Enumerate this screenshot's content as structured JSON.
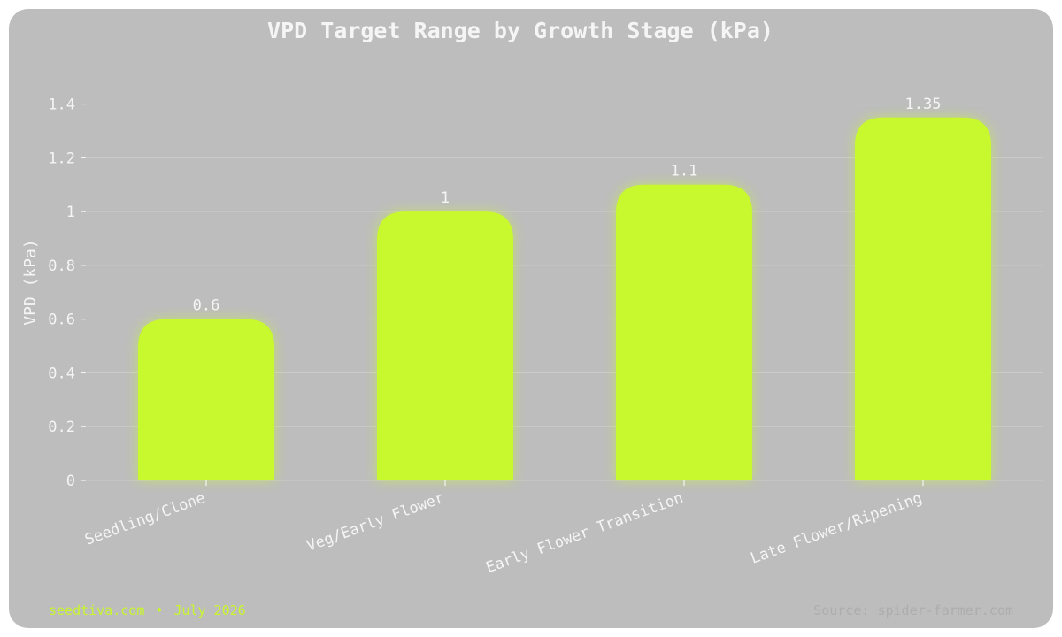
{
  "chart_data": {
    "type": "bar",
    "title": "VPD Target Range by Growth Stage (kPa)",
    "xlabel": "",
    "ylabel": "VPD (kPa)",
    "categories": [
      "Seedling/Clone",
      "Veg/Early Flower",
      "Early Flower Transition",
      "Late Flower/Ripening"
    ],
    "values": [
      0.6,
      1,
      1.1,
      1.35
    ],
    "value_labels": [
      "0.6",
      "1",
      "1.1",
      "1.35"
    ],
    "ylim": [
      0,
      1.55
    ],
    "yticks": [
      0,
      0.2,
      0.4,
      0.6,
      0.8,
      1,
      1.2,
      1.4
    ],
    "ytick_labels": [
      "0",
      "0.2",
      "0.4",
      "0.6",
      "0.8",
      "1",
      "1.2",
      "1.4"
    ],
    "grid": true,
    "legend": "none",
    "colors": {
      "bar": "#c8f82e",
      "background": "#bdbdbd",
      "text": "#f5f5f5",
      "grid": "#cccccc"
    }
  },
  "footer": {
    "site": "seedtiva.com",
    "separator": "•",
    "date": "July 2026",
    "source": "Source: spider-farmer.com"
  }
}
